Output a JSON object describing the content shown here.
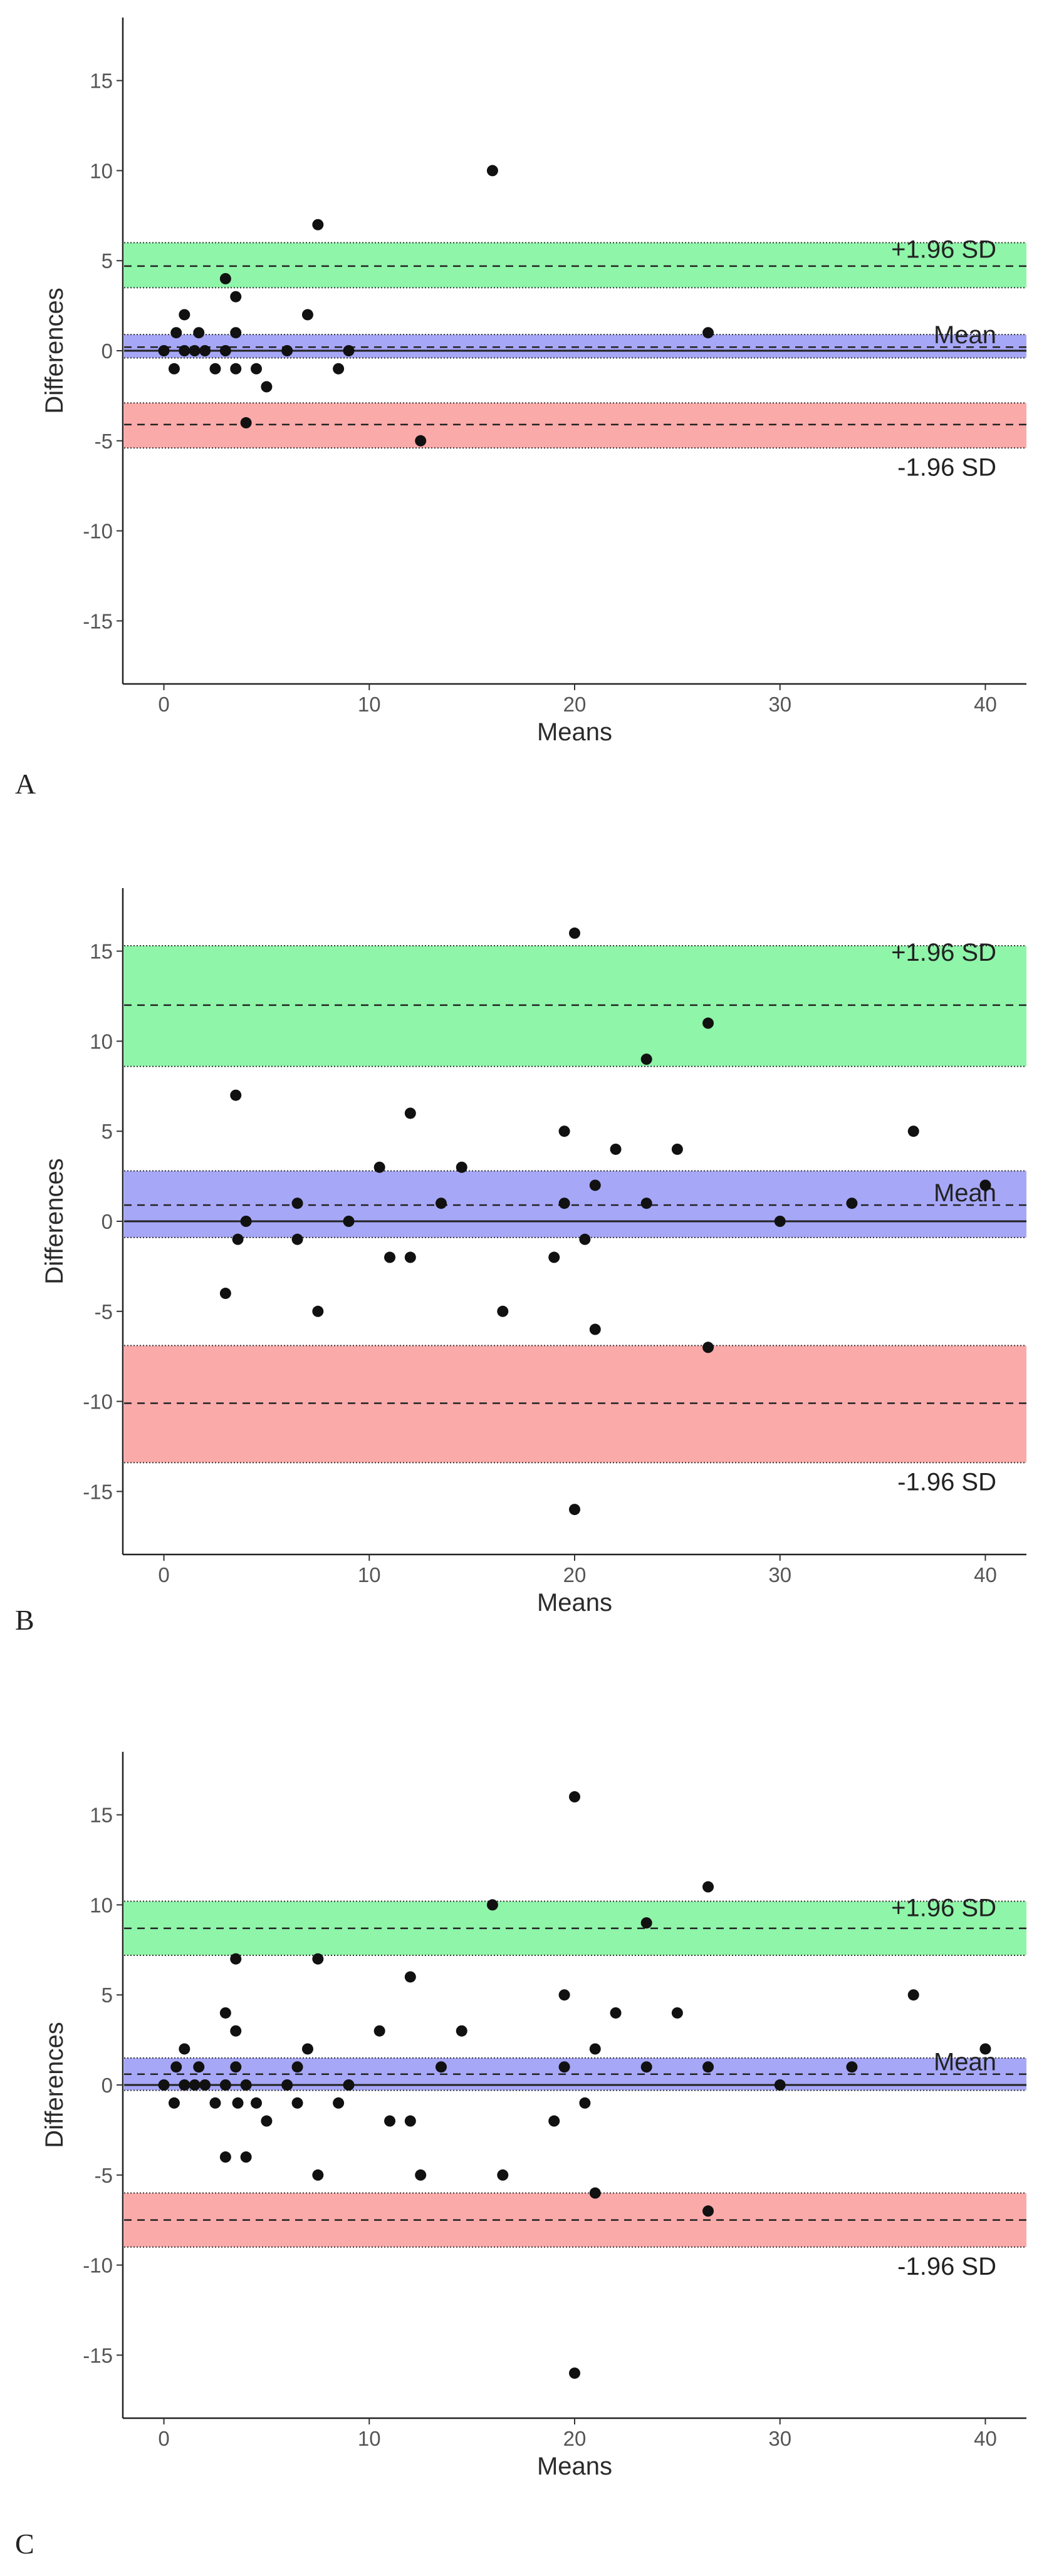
{
  "chart_data": [
    {
      "panel": "A",
      "type": "scatter",
      "xlabel": "Means",
      "ylabel": "Differences",
      "xlim": [
        -2,
        42
      ],
      "ylim": [
        -18.5,
        18.5
      ],
      "xticks": [
        0,
        10,
        20,
        30,
        40
      ],
      "yticks": [
        -15,
        -10,
        -5,
        0,
        5,
        10,
        15
      ],
      "colors": {
        "upper_band": "#8ff5a9",
        "mean_band": "#a7a7f8",
        "lower_band": "#fbaaaa",
        "point": "#111111"
      },
      "bands": [
        {
          "name": "+1.96 SD",
          "label": "+1.96 SD",
          "line": 4.7,
          "low": 3.5,
          "high": 6.0,
          "color": "#8ff5a9"
        },
        {
          "name": "Mean",
          "label": "Mean",
          "line": 0.2,
          "low": -0.4,
          "high": 0.9,
          "color": "#a7a7f8"
        },
        {
          "name": "-1.96 SD",
          "label": "-1.96 SD",
          "line": -4.1,
          "low": -5.4,
          "high": -2.9,
          "color": "#fbaaaa"
        }
      ],
      "zero_line": 0,
      "points": {
        "x": [
          0,
          0.5,
          0.6,
          1,
          1,
          1.5,
          1.7,
          2,
          2.5,
          3,
          3,
          3.5,
          3.5,
          3.5,
          4,
          4.5,
          5,
          6,
          7,
          7.5,
          8.5,
          9,
          12.5,
          16,
          26.5
        ],
        "y": [
          0,
          -1,
          1,
          2,
          0,
          0,
          1,
          0,
          -1,
          0,
          4,
          3,
          1,
          -1,
          -4,
          -1,
          -2,
          0,
          2,
          7,
          -1,
          0,
          -5,
          10,
          1
        ]
      }
    },
    {
      "panel": "B",
      "type": "scatter",
      "xlabel": "Means",
      "ylabel": "Differences",
      "xlim": [
        -2,
        42
      ],
      "ylim": [
        -18.5,
        18.5
      ],
      "xticks": [
        0,
        10,
        20,
        30,
        40
      ],
      "yticks": [
        -15,
        -10,
        -5,
        0,
        5,
        10,
        15
      ],
      "colors": {
        "upper_band": "#8ff5a9",
        "mean_band": "#a7a7f8",
        "lower_band": "#fbaaaa",
        "point": "#111111"
      },
      "bands": [
        {
          "name": "+1.96 SD",
          "label": "+1.96 SD",
          "line": 12.0,
          "low": 8.6,
          "high": 15.3,
          "color": "#8ff5a9"
        },
        {
          "name": "Mean",
          "label": "Mean",
          "line": 0.9,
          "low": -0.9,
          "high": 2.8,
          "color": "#a7a7f8"
        },
        {
          "name": "-1.96 SD",
          "label": "-1.96 SD",
          "line": -10.1,
          "low": -13.4,
          "high": -6.9,
          "color": "#fbaaaa"
        }
      ],
      "zero_line": 0,
      "points": {
        "x": [
          3,
          3.5,
          3.6,
          4,
          6.5,
          6.5,
          7.5,
          9,
          10.5,
          11,
          12,
          12,
          13.5,
          14.5,
          16.5,
          19,
          19.5,
          19.5,
          20,
          20,
          20.5,
          21,
          21,
          22,
          23.5,
          23.5,
          25,
          26.5,
          26.5,
          30,
          33.5,
          36.5,
          40
        ],
        "y": [
          -4,
          7,
          -1,
          0,
          1,
          -1,
          -5,
          0,
          3,
          -2,
          6,
          -2,
          1,
          3,
          -5,
          -2,
          5,
          1,
          16,
          -16,
          -1,
          2,
          -6,
          4,
          9,
          1,
          4,
          11,
          -7,
          0,
          1,
          5,
          2
        ]
      }
    },
    {
      "panel": "C",
      "type": "scatter",
      "xlabel": "Means",
      "ylabel": "Differences",
      "xlim": [
        -2,
        42
      ],
      "ylim": [
        -18.5,
        18.5
      ],
      "xticks": [
        0,
        10,
        20,
        30,
        40
      ],
      "yticks": [
        -15,
        -10,
        -5,
        0,
        5,
        10,
        15
      ],
      "colors": {
        "upper_band": "#8ff5a9",
        "mean_band": "#a7a7f8",
        "lower_band": "#fbaaaa",
        "point": "#111111"
      },
      "bands": [
        {
          "name": "+1.96 SD",
          "label": "+1.96 SD",
          "line": 8.7,
          "low": 7.2,
          "high": 10.2,
          "color": "#8ff5a9"
        },
        {
          "name": "Mean",
          "label": "Mean",
          "line": 0.6,
          "low": -0.3,
          "high": 1.5,
          "color": "#a7a7f8"
        },
        {
          "name": "-1.96 SD",
          "label": "-1.96 SD",
          "line": -7.5,
          "low": -9.0,
          "high": -6.0,
          "color": "#fbaaaa"
        }
      ],
      "zero_line": 0,
      "points": {
        "x": [
          0,
          0.5,
          0.6,
          1,
          1,
          1.5,
          1.7,
          2,
          2.5,
          3,
          3,
          3,
          3.5,
          3.5,
          3.5,
          3.6,
          4,
          4,
          4.5,
          5,
          6,
          6.5,
          6.5,
          7,
          7.5,
          7.5,
          8.5,
          9,
          10.5,
          11,
          12,
          12,
          12.5,
          13.5,
          14.5,
          16,
          16.5,
          19,
          19.5,
          19.5,
          20,
          20,
          20.5,
          21,
          21,
          22,
          23.5,
          23.5,
          25,
          26.5,
          26.5,
          26.5,
          30,
          33.5,
          36.5,
          40
        ],
        "y": [
          0,
          -1,
          1,
          2,
          0,
          0,
          1,
          0,
          -1,
          0,
          4,
          -4,
          3,
          1,
          7,
          -1,
          0,
          -4,
          -1,
          -2,
          0,
          1,
          -1,
          2,
          7,
          -5,
          -1,
          0,
          3,
          -2,
          6,
          -2,
          -5,
          1,
          3,
          10,
          -5,
          -2,
          5,
          1,
          16,
          -16,
          -1,
          2,
          -6,
          4,
          9,
          1,
          4,
          11,
          1,
          -7,
          0,
          1,
          5,
          2
        ]
      }
    }
  ]
}
